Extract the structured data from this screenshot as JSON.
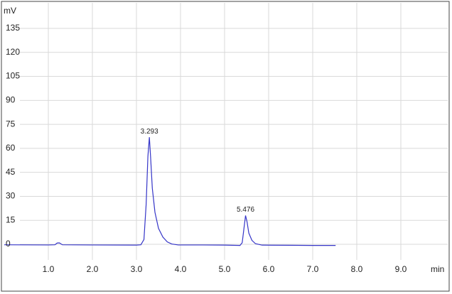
{
  "chart_data": {
    "type": "line",
    "x_label": "min",
    "y_label": "mV",
    "x": [
      0,
      1.0,
      1.15,
      1.2,
      1.25,
      1.32,
      2.0,
      3.0,
      3.1,
      3.17,
      3.22,
      3.26,
      3.293,
      3.32,
      3.36,
      3.42,
      3.5,
      3.6,
      3.7,
      3.8,
      3.95,
      4.5,
      5.0,
      5.35,
      5.4,
      5.44,
      5.476,
      5.51,
      5.55,
      5.62,
      5.7,
      5.85,
      6.5,
      7.0,
      7.52
    ],
    "series": [
      {
        "color": "#3535c8",
        "values": [
          -0.3,
          -0.4,
          -0.3,
          0.8,
          0.9,
          -0.3,
          -0.4,
          -0.5,
          -0.3,
          3,
          25,
          55,
          67,
          55,
          35,
          20,
          10,
          4.5,
          1.5,
          0.2,
          -0.4,
          -0.4,
          -0.5,
          -0.7,
          1,
          10,
          18,
          14,
          7,
          2.5,
          0.4,
          -0.5,
          -0.6,
          -0.7,
          -0.7
        ]
      }
    ],
    "annotations": [
      {
        "x": 3.293,
        "y": 67,
        "text": "3.293"
      },
      {
        "x": 5.476,
        "y": 18,
        "text": "5.476"
      }
    ],
    "xlim": [
      0,
      10
    ],
    "xticks": [
      {
        "value": 1,
        "label": "1.0"
      },
      {
        "value": 2,
        "label": "2.0"
      },
      {
        "value": 3,
        "label": "3.0"
      },
      {
        "value": 4,
        "label": "4.0"
      },
      {
        "value": 5,
        "label": "5.0"
      },
      {
        "value": 6,
        "label": "6.0"
      },
      {
        "value": 7,
        "label": "7.0"
      },
      {
        "value": 8,
        "label": "8.0"
      },
      {
        "value": 9,
        "label": "9.0"
      }
    ],
    "ylim": [
      -30,
      150
    ],
    "yticks": [
      0,
      15,
      30,
      45,
      60,
      75,
      90,
      105,
      120,
      135
    ],
    "grid": true
  }
}
